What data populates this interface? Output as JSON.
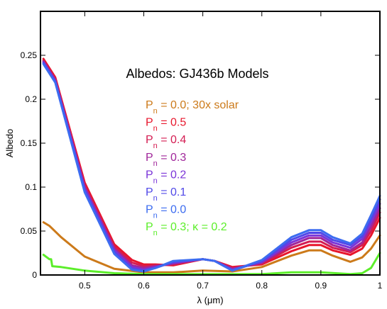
{
  "chart_data": {
    "type": "line",
    "title": "Albedos: GJ436b Models",
    "xlabel": "λ (μm)",
    "ylabel": "Albedo",
    "xlim": [
      0.425,
      1.0
    ],
    "ylim": [
      0.0,
      0.3
    ],
    "xticks": [
      "0.5",
      "0.6",
      "0.7",
      "0.8",
      "0.9",
      "1"
    ],
    "yticks": [
      "0",
      "0.05",
      "0.1",
      "0.15",
      "0.2",
      "0.25"
    ],
    "legend_position": "upper-center",
    "series": [
      {
        "name": "P_n = 0.0; 30x solar",
        "legend_main": "P",
        "legend_sub": "n",
        "legend_rest": " = 0.0; 30x solar",
        "color": "#CC7A1A",
        "x": [
          0.43,
          0.44,
          0.46,
          0.5,
          0.55,
          0.6,
          0.65,
          0.7,
          0.75,
          0.8,
          0.85,
          0.88,
          0.9,
          0.92,
          0.95,
          0.97,
          0.985,
          1.0
        ],
        "y": [
          0.06,
          0.056,
          0.043,
          0.021,
          0.007,
          0.003,
          0.003,
          0.005,
          0.004,
          0.009,
          0.022,
          0.028,
          0.028,
          0.022,
          0.015,
          0.02,
          0.03,
          0.045
        ]
      },
      {
        "name": "P_n = 0.5",
        "legend_main": "P",
        "legend_sub": "n",
        "legend_rest": " = 0.5",
        "color": "#E8162C",
        "x": [
          0.43,
          0.45,
          0.5,
          0.55,
          0.58,
          0.6,
          0.62,
          0.65,
          0.7,
          0.72,
          0.75,
          0.8,
          0.85,
          0.88,
          0.9,
          0.92,
          0.95,
          0.97,
          0.985,
          1.0
        ],
        "y": [
          0.246,
          0.225,
          0.105,
          0.035,
          0.017,
          0.012,
          0.012,
          0.011,
          0.018,
          0.016,
          0.009,
          0.012,
          0.027,
          0.034,
          0.034,
          0.028,
          0.023,
          0.03,
          0.045,
          0.065
        ]
      },
      {
        "name": "P_n = 0.4",
        "legend_main": "P",
        "legend_sub": "n",
        "legend_rest": " = 0.4",
        "color": "#D41C52",
        "x": [
          0.43,
          0.45,
          0.5,
          0.55,
          0.58,
          0.6,
          0.62,
          0.65,
          0.7,
          0.72,
          0.75,
          0.8,
          0.85,
          0.88,
          0.9,
          0.92,
          0.95,
          0.97,
          0.985,
          1.0
        ],
        "y": [
          0.244,
          0.223,
          0.102,
          0.032,
          0.014,
          0.01,
          0.011,
          0.012,
          0.018,
          0.016,
          0.008,
          0.013,
          0.031,
          0.038,
          0.038,
          0.031,
          0.026,
          0.034,
          0.05,
          0.071
        ]
      },
      {
        "name": "P_n = 0.3",
        "legend_main": "P",
        "legend_sub": "n",
        "legend_rest": " = 0.3",
        "color": "#A0269A",
        "x": [
          0.43,
          0.45,
          0.5,
          0.55,
          0.58,
          0.6,
          0.62,
          0.65,
          0.7,
          0.72,
          0.75,
          0.8,
          0.85,
          0.88,
          0.9,
          0.92,
          0.95,
          0.97,
          0.985,
          1.0
        ],
        "y": [
          0.243,
          0.222,
          0.1,
          0.03,
          0.011,
          0.008,
          0.01,
          0.013,
          0.018,
          0.016,
          0.007,
          0.014,
          0.034,
          0.042,
          0.042,
          0.034,
          0.028,
          0.037,
          0.055,
          0.076
        ]
      },
      {
        "name": "P_n = 0.2",
        "legend_main": "P",
        "legend_sub": "n",
        "legend_rest": " = 0.2",
        "color": "#7A34D8",
        "x": [
          0.43,
          0.45,
          0.5,
          0.55,
          0.58,
          0.6,
          0.62,
          0.65,
          0.7,
          0.72,
          0.75,
          0.8,
          0.85,
          0.88,
          0.9,
          0.92,
          0.95,
          0.97,
          0.985,
          1.0
        ],
        "y": [
          0.242,
          0.221,
          0.098,
          0.028,
          0.009,
          0.006,
          0.009,
          0.014,
          0.018,
          0.016,
          0.006,
          0.015,
          0.037,
          0.045,
          0.045,
          0.037,
          0.031,
          0.041,
          0.06,
          0.081
        ]
      },
      {
        "name": "P_n = 0.1",
        "legend_main": "P",
        "legend_sub": "n",
        "legend_rest": " = 0.1",
        "color": "#5048E8",
        "x": [
          0.43,
          0.45,
          0.5,
          0.55,
          0.58,
          0.6,
          0.62,
          0.65,
          0.7,
          0.72,
          0.75,
          0.8,
          0.85,
          0.88,
          0.9,
          0.92,
          0.95,
          0.97,
          0.985,
          1.0
        ],
        "y": [
          0.241,
          0.22,
          0.096,
          0.026,
          0.007,
          0.005,
          0.008,
          0.015,
          0.018,
          0.016,
          0.005,
          0.016,
          0.04,
          0.048,
          0.048,
          0.04,
          0.034,
          0.044,
          0.064,
          0.086
        ]
      },
      {
        "name": "P_n = 0.0",
        "legend_main": "P",
        "legend_sub": "n",
        "legend_rest": " = 0.0",
        "color": "#3C6CF0",
        "x": [
          0.43,
          0.45,
          0.5,
          0.55,
          0.58,
          0.6,
          0.62,
          0.65,
          0.7,
          0.72,
          0.75,
          0.8,
          0.85,
          0.88,
          0.9,
          0.92,
          0.95,
          0.97,
          0.985,
          1.0
        ],
        "y": [
          0.24,
          0.219,
          0.094,
          0.024,
          0.006,
          0.004,
          0.008,
          0.016,
          0.018,
          0.016,
          0.005,
          0.017,
          0.043,
          0.051,
          0.051,
          0.043,
          0.036,
          0.047,
          0.068,
          0.09
        ]
      },
      {
        "name": "P_n = 0.3; κ = 0.2",
        "legend_main": "P",
        "legend_sub": "n",
        "legend_rest": " = 0.3; κ = 0.2",
        "color": "#5CEE2A",
        "x": [
          0.43,
          0.44,
          0.443,
          0.445,
          0.46,
          0.5,
          0.55,
          0.6,
          0.65,
          0.7,
          0.75,
          0.8,
          0.85,
          0.9,
          0.95,
          0.97,
          0.985,
          1.0
        ],
        "y": [
          0.023,
          0.018,
          0.018,
          0.01,
          0.009,
          0.005,
          0.002,
          0.001,
          0.001,
          0.001,
          0.001,
          0.001,
          0.003,
          0.003,
          0.001,
          0.002,
          0.008,
          0.025
        ]
      }
    ]
  }
}
